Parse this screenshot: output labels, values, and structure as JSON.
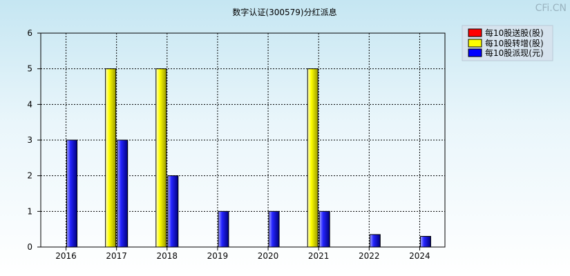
{
  "watermark": "CFi.CN",
  "chart_data": {
    "type": "bar",
    "title": "数字认证(300579)分红派息",
    "xlabel": "",
    "ylabel": "",
    "categories": [
      "2016",
      "2017",
      "2018",
      "2019",
      "2020",
      "2021",
      "2022",
      "2024"
    ],
    "ylim": [
      0,
      6
    ],
    "yticks": [
      0,
      1,
      2,
      3,
      4,
      5,
      6
    ],
    "grid": true,
    "legend_position": "top-right",
    "series": [
      {
        "name": "每10股送股(股)",
        "color": "#ff0000",
        "values": [
          0,
          0,
          0,
          0,
          0,
          0,
          0,
          0
        ]
      },
      {
        "name": "每10股转增(股)",
        "color": "#ffff00",
        "values": [
          0,
          5,
          5,
          0,
          0,
          5,
          0,
          0
        ]
      },
      {
        "name": "每10股派现(元)",
        "color": "#0000ff",
        "values": [
          3,
          3,
          2,
          1,
          1,
          1,
          0.35,
          0.3
        ]
      }
    ]
  }
}
